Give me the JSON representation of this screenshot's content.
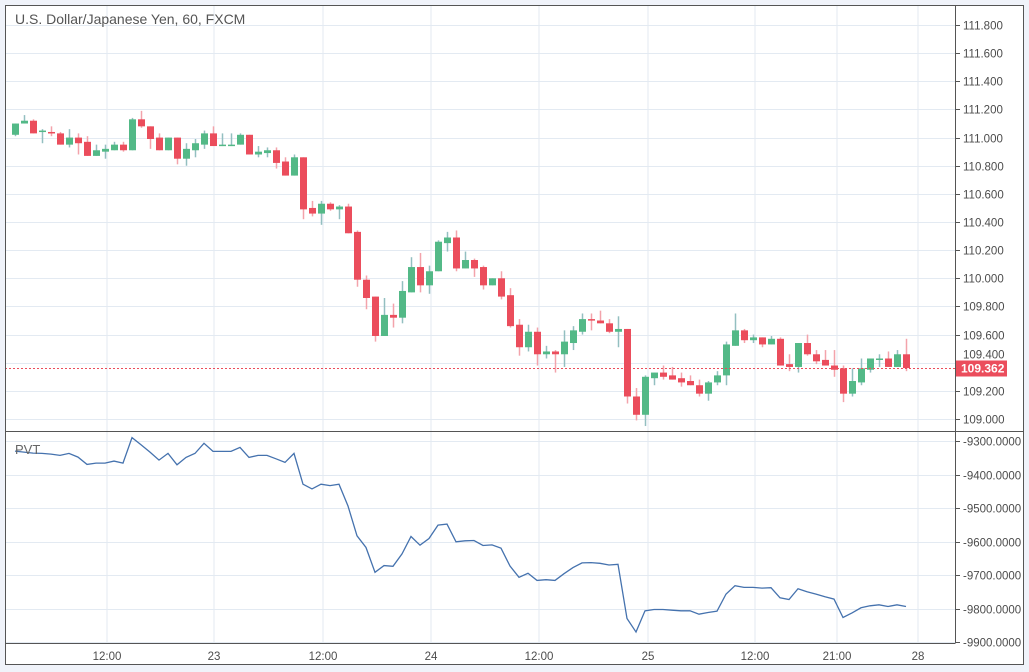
{
  "chart_data": {
    "type": "candlestick",
    "title": "U.S. Dollar/Japanese Yen, 60, FXCM",
    "symbol": "USD/JPY",
    "interval": "60",
    "source": "FXCM",
    "colors": {
      "up": "#53b987",
      "down": "#eb4d5c",
      "up_wick": "#93bfc0",
      "down_wick": "#f3a3ab",
      "pvt_line": "#4572ae",
      "grid": "#e3eaf2",
      "last_price": "#eb4d5c"
    },
    "price_axis": {
      "ylim": [
        108.93,
        111.84
      ],
      "ticks": [
        "111.800",
        "111.600",
        "111.400",
        "111.200",
        "111.000",
        "110.800",
        "110.600",
        "110.400",
        "110.200",
        "110.000",
        "109.800",
        "109.600",
        "109.400",
        "109.200",
        "109.000"
      ]
    },
    "last_price": "109.362",
    "x_tick_labels": [
      "12:00",
      "23",
      "12:00",
      "24",
      "12:00",
      "25",
      "12:00",
      "21:00",
      "28"
    ],
    "ohlc": [
      [
        111.02,
        111.1,
        111.01,
        111.1
      ],
      [
        111.1,
        111.16,
        111.1,
        111.12
      ],
      [
        111.12,
        111.13,
        111.03,
        111.03
      ],
      [
        111.04,
        111.06,
        110.96,
        111.05
      ],
      [
        111.04,
        111.08,
        111.01,
        111.03
      ],
      [
        111.03,
        111.04,
        110.95,
        110.95
      ],
      [
        110.95,
        111.06,
        110.93,
        111.0
      ],
      [
        111.0,
        111.03,
        110.88,
        110.96
      ],
      [
        110.97,
        111.01,
        110.87,
        110.87
      ],
      [
        110.87,
        110.95,
        110.87,
        110.91
      ],
      [
        110.9,
        110.95,
        110.85,
        110.92
      ],
      [
        110.91,
        110.97,
        110.91,
        110.95
      ],
      [
        110.95,
        110.97,
        110.9,
        110.91
      ],
      [
        110.91,
        111.14,
        110.91,
        111.13
      ],
      [
        111.13,
        111.19,
        111.07,
        111.08
      ],
      [
        111.08,
        111.08,
        110.92,
        110.99
      ],
      [
        111.0,
        111.03,
        110.91,
        110.91
      ],
      [
        110.91,
        111.0,
        110.91,
        111.0
      ],
      [
        111.0,
        111.0,
        110.81,
        110.85
      ],
      [
        110.85,
        110.96,
        110.8,
        110.92
      ],
      [
        110.91,
        110.99,
        110.86,
        110.96
      ],
      [
        110.95,
        111.05,
        110.92,
        111.03
      ],
      [
        111.03,
        111.08,
        110.94,
        110.94
      ],
      [
        110.94,
        111.03,
        110.94,
        110.95
      ],
      [
        110.94,
        111.03,
        110.94,
        110.95
      ],
      [
        110.95,
        111.03,
        110.95,
        111.02
      ],
      [
        111.02,
        111.02,
        110.88,
        110.88
      ],
      [
        110.88,
        110.94,
        110.86,
        110.9
      ],
      [
        110.89,
        110.93,
        110.86,
        110.91
      ],
      [
        110.91,
        110.93,
        110.78,
        110.82
      ],
      [
        110.83,
        110.86,
        110.73,
        110.73
      ],
      [
        110.73,
        110.88,
        110.73,
        110.86
      ],
      [
        110.86,
        110.86,
        110.42,
        110.49
      ],
      [
        110.5,
        110.55,
        110.44,
        110.46
      ],
      [
        110.46,
        110.55,
        110.38,
        110.53
      ],
      [
        110.53,
        110.54,
        110.48,
        110.49
      ],
      [
        110.49,
        110.52,
        110.42,
        110.51
      ],
      [
        110.51,
        110.53,
        110.32,
        110.32
      ],
      [
        110.33,
        110.34,
        109.94,
        109.99
      ],
      [
        109.99,
        110.02,
        109.78,
        109.86
      ],
      [
        109.87,
        109.87,
        109.55,
        109.59
      ],
      [
        109.59,
        109.86,
        109.59,
        109.74
      ],
      [
        109.74,
        109.82,
        109.65,
        109.72
      ],
      [
        109.72,
        109.98,
        109.68,
        109.91
      ],
      [
        109.9,
        110.15,
        109.9,
        110.08
      ],
      [
        110.08,
        110.18,
        109.9,
        109.95
      ],
      [
        109.95,
        110.09,
        109.89,
        110.05
      ],
      [
        110.05,
        110.27,
        110.05,
        110.26
      ],
      [
        110.25,
        110.33,
        110.19,
        110.29
      ],
      [
        110.29,
        110.34,
        110.05,
        110.07
      ],
      [
        110.07,
        110.19,
        110.07,
        110.13
      ],
      [
        110.13,
        110.14,
        110.01,
        110.07
      ],
      [
        110.08,
        110.09,
        109.92,
        109.95
      ],
      [
        109.95,
        110.0,
        109.95,
        110.0
      ],
      [
        110.0,
        110.05,
        109.85,
        109.87
      ],
      [
        109.88,
        109.93,
        109.65,
        109.66
      ],
      [
        109.67,
        109.71,
        109.45,
        109.51
      ],
      [
        109.51,
        109.67,
        109.48,
        109.62
      ],
      [
        109.62,
        109.65,
        109.38,
        109.46
      ],
      [
        109.46,
        109.52,
        109.43,
        109.48
      ],
      [
        109.48,
        109.49,
        109.33,
        109.46
      ],
      [
        109.46,
        109.63,
        109.37,
        109.55
      ],
      [
        109.54,
        109.66,
        109.49,
        109.63
      ],
      [
        109.62,
        109.75,
        109.6,
        109.71
      ],
      [
        109.71,
        109.75,
        109.63,
        109.7
      ],
      [
        109.7,
        109.77,
        109.68,
        109.68
      ],
      [
        109.68,
        109.71,
        109.61,
        109.62
      ],
      [
        109.62,
        109.73,
        109.51,
        109.64
      ],
      [
        109.64,
        109.64,
        109.11,
        109.16
      ],
      [
        109.16,
        109.22,
        108.99,
        109.03
      ],
      [
        109.03,
        109.31,
        108.95,
        109.3
      ],
      [
        109.29,
        109.33,
        109.24,
        109.33
      ],
      [
        109.33,
        109.38,
        109.28,
        109.3
      ],
      [
        109.31,
        109.37,
        109.28,
        109.28
      ],
      [
        109.29,
        109.33,
        109.23,
        109.26
      ],
      [
        109.27,
        109.31,
        109.24,
        109.24
      ],
      [
        109.24,
        109.28,
        109.16,
        109.18
      ],
      [
        109.18,
        109.27,
        109.13,
        109.26
      ],
      [
        109.26,
        109.34,
        109.24,
        109.31
      ],
      [
        109.31,
        109.55,
        109.24,
        109.53
      ],
      [
        109.52,
        109.75,
        109.52,
        109.63
      ],
      [
        109.63,
        109.64,
        109.54,
        109.56
      ],
      [
        109.56,
        109.6,
        109.54,
        109.58
      ],
      [
        109.58,
        109.58,
        109.51,
        109.53
      ],
      [
        109.53,
        109.59,
        109.53,
        109.57
      ],
      [
        109.57,
        109.58,
        109.38,
        109.38
      ],
      [
        109.39,
        109.46,
        109.34,
        109.37
      ],
      [
        109.37,
        109.54,
        109.33,
        109.54
      ],
      [
        109.54,
        109.6,
        109.45,
        109.46
      ],
      [
        109.46,
        109.49,
        109.39,
        109.41
      ],
      [
        109.42,
        109.49,
        109.38,
        109.38
      ],
      [
        109.38,
        109.49,
        109.3,
        109.35
      ],
      [
        109.36,
        109.38,
        109.12,
        109.18
      ],
      [
        109.18,
        109.36,
        109.16,
        109.27
      ],
      [
        109.26,
        109.43,
        109.24,
        109.36
      ],
      [
        109.35,
        109.43,
        109.33,
        109.43
      ],
      [
        109.42,
        109.46,
        109.37,
        109.43
      ],
      [
        109.43,
        109.48,
        109.37,
        109.37
      ],
      [
        109.37,
        109.49,
        109.37,
        109.46
      ],
      [
        109.46,
        109.57,
        109.34,
        109.362
      ]
    ],
    "pvt": {
      "label": "PVT",
      "ticks": [
        "-9300.0000",
        "-9400.0000",
        "-9500.0000",
        "-9600.0000",
        "-9700.0000",
        "-9800.0000",
        "-9900.0000"
      ],
      "values": [
        -9330,
        -9333,
        -9336,
        -9337,
        -9339,
        -9343,
        -9337,
        -9348,
        -9370,
        -9366,
        -9366,
        -9360,
        -9366,
        -9290,
        -9311,
        -9333,
        -9357,
        -9337,
        -9371,
        -9349,
        -9337,
        -9307,
        -9331,
        -9331,
        -9331,
        -9319,
        -9349,
        -9343,
        -9343,
        -9353,
        -9364,
        -9337,
        -9429,
        -9443,
        -9429,
        -9433,
        -9429,
        -9494,
        -9583,
        -9618,
        -9692,
        -9672,
        -9674,
        -9637,
        -9585,
        -9611,
        -9591,
        -9551,
        -9548,
        -9601,
        -9598,
        -9597,
        -9612,
        -9610,
        -9620,
        -9673,
        -9707,
        -9695,
        -9716,
        -9714,
        -9716,
        -9696,
        -9678,
        -9664,
        -9663,
        -9665,
        -9670,
        -9668,
        -9830,
        -9870,
        -9807,
        -9803,
        -9803,
        -9805,
        -9807,
        -9807,
        -9817,
        -9812,
        -9808,
        -9757,
        -9732,
        -9737,
        -9737,
        -9739,
        -9738,
        -9768,
        -9773,
        -9741,
        -9750,
        -9757,
        -9765,
        -9772,
        -9827,
        -9813,
        -9798,
        -9792,
        -9789,
        -9794,
        -9789,
        -9794
      ]
    }
  }
}
